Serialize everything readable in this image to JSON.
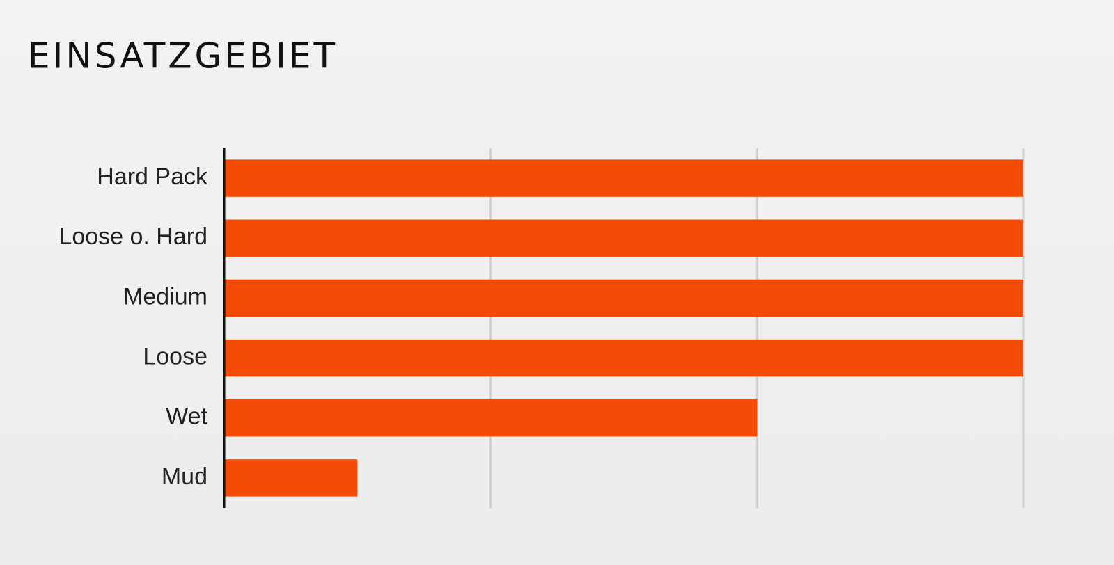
{
  "chart_data": {
    "type": "hbar",
    "title": "EINSATZGEBIET",
    "categories": [
      "Hard Pack",
      "Loose o. Hard",
      "Medium",
      "Loose",
      "Wet",
      "Mud"
    ],
    "values": [
      3,
      3,
      3,
      3,
      2,
      0.5
    ],
    "color": "#f24c07",
    "xlim": [
      0,
      3
    ],
    "xticks": [
      0,
      1,
      2,
      3
    ],
    "grid": true
  }
}
